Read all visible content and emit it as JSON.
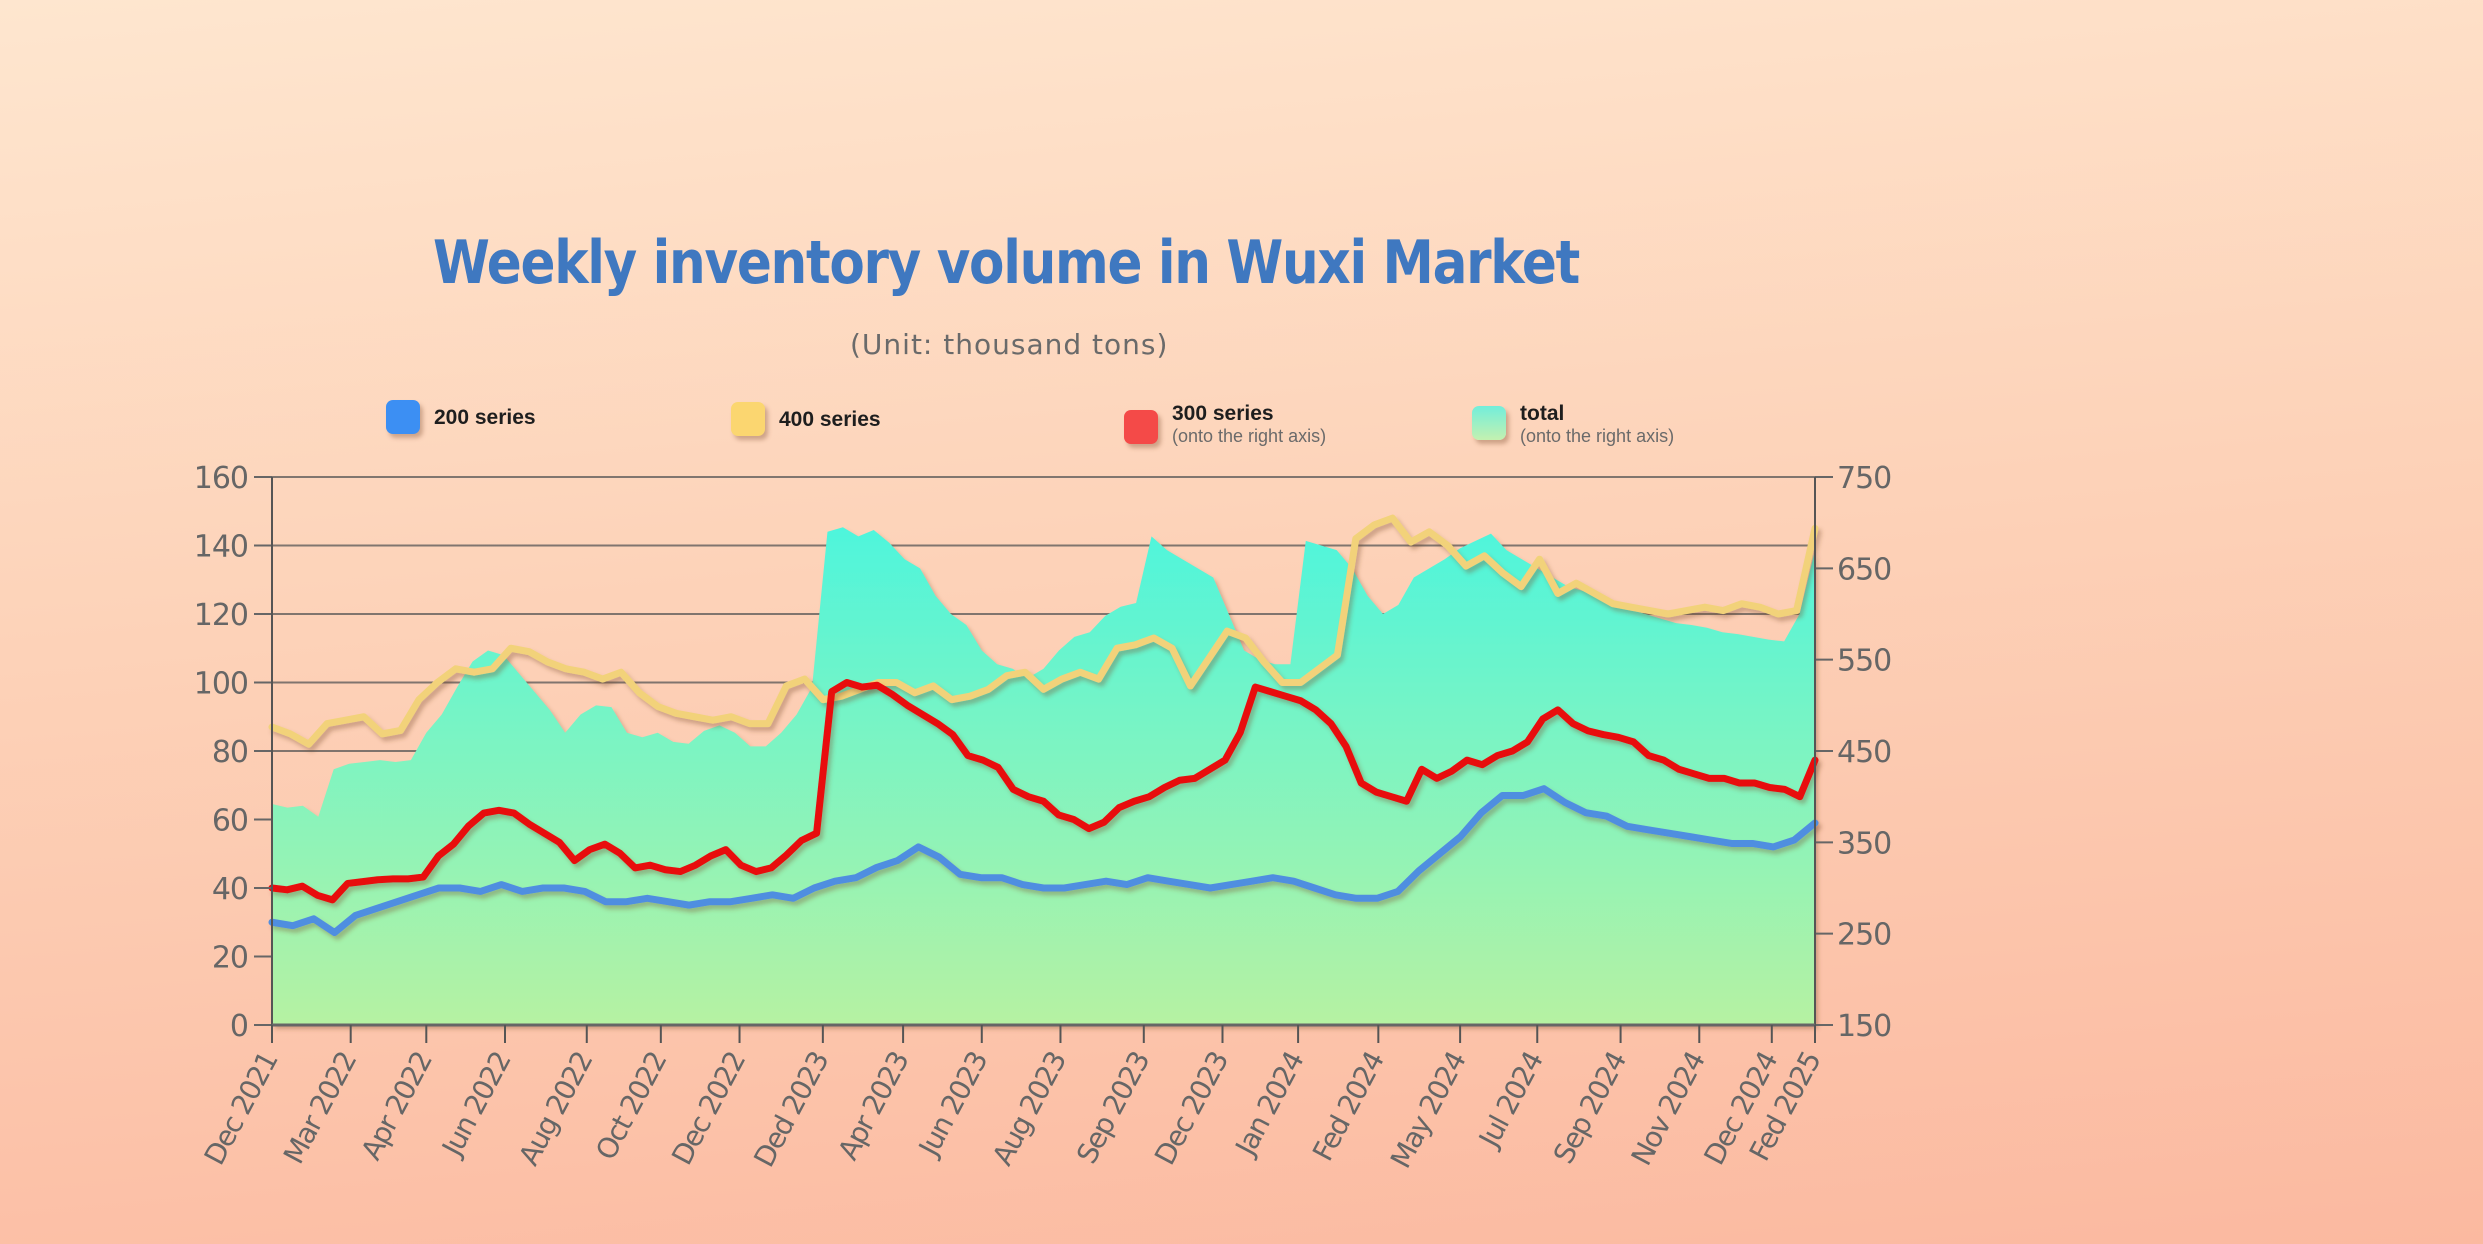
{
  "chart_data": {
    "type": "line",
    "title": "Weekly inventory volume in Wuxi Market",
    "subtitle": "(Unit: thousand tons)",
    "xlabel": "",
    "ylabel": "",
    "left_axis": {
      "ylim": [
        0,
        160
      ],
      "ticks": [
        0,
        20,
        40,
        60,
        80,
        100,
        120,
        140,
        160
      ]
    },
    "right_axis": {
      "ylim": [
        150,
        750
      ],
      "ticks": [
        150,
        250,
        350,
        450,
        550,
        650,
        750
      ]
    },
    "grid": true,
    "legend_position": "top",
    "x_tick_labels": [
      "Dec 2021",
      "Mar 2022",
      "Apr 2022",
      "Jun 2022",
      "Aug 2022",
      "Oct 2022",
      "Dec 2022",
      "Ded 2023",
      "Apr 2023",
      "Jun 2023",
      "Aug 2023",
      "Sep 2023",
      "Dec 2023",
      "Jan 2024",
      "Fed 2024",
      "May 2024",
      "Jul 2024",
      "Sep 2024",
      "Nov 2024",
      "Dec 2024",
      "Fed 2025"
    ],
    "x_tick_positions": [
      0,
      0.051,
      0.1,
      0.151,
      0.204,
      0.252,
      0.303,
      0.357,
      0.409,
      0.46,
      0.511,
      0.565,
      0.616,
      0.665,
      0.717,
      0.77,
      0.82,
      0.874,
      0.925,
      0.972,
      1.0
    ],
    "series": [
      {
        "name": "200 series",
        "axis": "left",
        "type": "line",
        "color": "#4f8ee0",
        "values": [
          30,
          29,
          31,
          27,
          32,
          34,
          36,
          38,
          40,
          40,
          39,
          41,
          39,
          40,
          40,
          39,
          36,
          36,
          37,
          36,
          35,
          36,
          36,
          37,
          38,
          37,
          40,
          42,
          43,
          46,
          48,
          52,
          49,
          44,
          43,
          43,
          41,
          40,
          40,
          41,
          42,
          41,
          43,
          42,
          41,
          40,
          41,
          42,
          43,
          42,
          40,
          38,
          37,
          37,
          39,
          45,
          50,
          55,
          62,
          67,
          67,
          69,
          65,
          62,
          61,
          58,
          57,
          56,
          55,
          54,
          53,
          53,
          52,
          54,
          59
        ]
      },
      {
        "name": "400 series",
        "axis": "left",
        "type": "line",
        "color": "#f2d27a",
        "values": [
          87,
          85,
          82,
          88,
          89,
          90,
          85,
          86,
          95,
          100,
          104,
          103,
          104,
          110,
          109,
          106,
          104,
          103,
          101,
          103,
          97,
          93,
          91,
          90,
          89,
          90,
          88,
          88,
          99,
          101,
          95,
          96,
          98,
          100,
          100,
          97,
          99,
          95,
          96,
          98,
          102,
          103,
          98,
          101,
          103,
          101,
          110,
          111,
          113,
          110,
          99,
          107,
          115,
          113,
          106,
          100,
          100,
          104,
          108,
          142,
          146,
          148,
          141,
          144,
          140,
          134,
          137,
          132,
          128,
          136,
          126,
          129,
          126,
          123,
          122,
          121,
          120,
          121,
          122,
          121,
          123,
          122,
          120,
          121,
          145
        ]
      },
      {
        "name": "300 series",
        "axis": "right",
        "type": "line",
        "color": "#e81010",
        "subtitle": "(onto the right axis)",
        "values": [
          300,
          298,
          302,
          292,
          287,
          305,
          307,
          309,
          310,
          310,
          312,
          335,
          348,
          368,
          382,
          385,
          382,
          370,
          360,
          350,
          330,
          342,
          348,
          338,
          322,
          325,
          320,
          318,
          325,
          335,
          342,
          325,
          318,
          322,
          336,
          352,
          360,
          515,
          525,
          520,
          522,
          512,
          500,
          490,
          480,
          468,
          445,
          440,
          432,
          408,
          400,
          395,
          380,
          375,
          365,
          372,
          388,
          395,
          400,
          410,
          418,
          420,
          430,
          440,
          470,
          520,
          515,
          510,
          505,
          495,
          480,
          455,
          415,
          405,
          400,
          395,
          430,
          420,
          428,
          440,
          435,
          445,
          450,
          460,
          485,
          495,
          480,
          472,
          468,
          465,
          460,
          445,
          440,
          430,
          425,
          420,
          420,
          415,
          415,
          410,
          408,
          400,
          440
        ]
      },
      {
        "name": "total",
        "axis": "right",
        "type": "area",
        "color_top": "#4ef5dc",
        "color_bottom": "#b6f2a2",
        "subtitle": "(onto the right axis)",
        "values": [
          392,
          388,
          390,
          378,
          430,
          436,
          438,
          440,
          438,
          440,
          470,
          490,
          520,
          548,
          560,
          555,
          535,
          515,
          495,
          470,
          490,
          500,
          498,
          470,
          465,
          470,
          460,
          458,
          472,
          478,
          470,
          455,
          455,
          470,
          490,
          520,
          690,
          695,
          685,
          692,
          678,
          660,
          650,
          620,
          600,
          588,
          560,
          545,
          540,
          530,
          540,
          560,
          575,
          580,
          598,
          608,
          612,
          685,
          670,
          660,
          650,
          640,
          600,
          560,
          550,
          545,
          545,
          680,
          675,
          670,
          650,
          620,
          600,
          610,
          640,
          650,
          660,
          672,
          680,
          688,
          670,
          660,
          650,
          640,
          630,
          625,
          620,
          610,
          605,
          600,
          595,
          590,
          588,
          585,
          580,
          578,
          575,
          572,
          570,
          600,
          670
        ]
      }
    ]
  },
  "legend": [
    {
      "label": "200 series",
      "sub": ""
    },
    {
      "label": "400 series",
      "sub": ""
    },
    {
      "label": "300 series",
      "sub": "(onto the right axis)"
    },
    {
      "label": "total",
      "sub": "(onto the right axis)"
    }
  ]
}
